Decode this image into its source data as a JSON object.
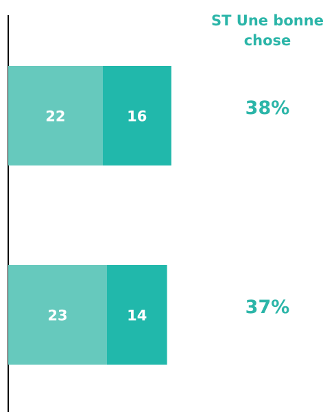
{
  "chart_data": {
    "type": "stacked-bar",
    "column_header": "ST Une bonne chose",
    "series": [
      {
        "color": "#66c9bd",
        "values": [
          22,
          23
        ]
      },
      {
        "color": "#21b8ab",
        "values": [
          16,
          14
        ]
      }
    ],
    "totals": [
      38,
      37
    ],
    "total_labels": [
      "38%",
      "37%"
    ],
    "label_color": "#ffffff",
    "total_color": "#2bb5a8"
  }
}
